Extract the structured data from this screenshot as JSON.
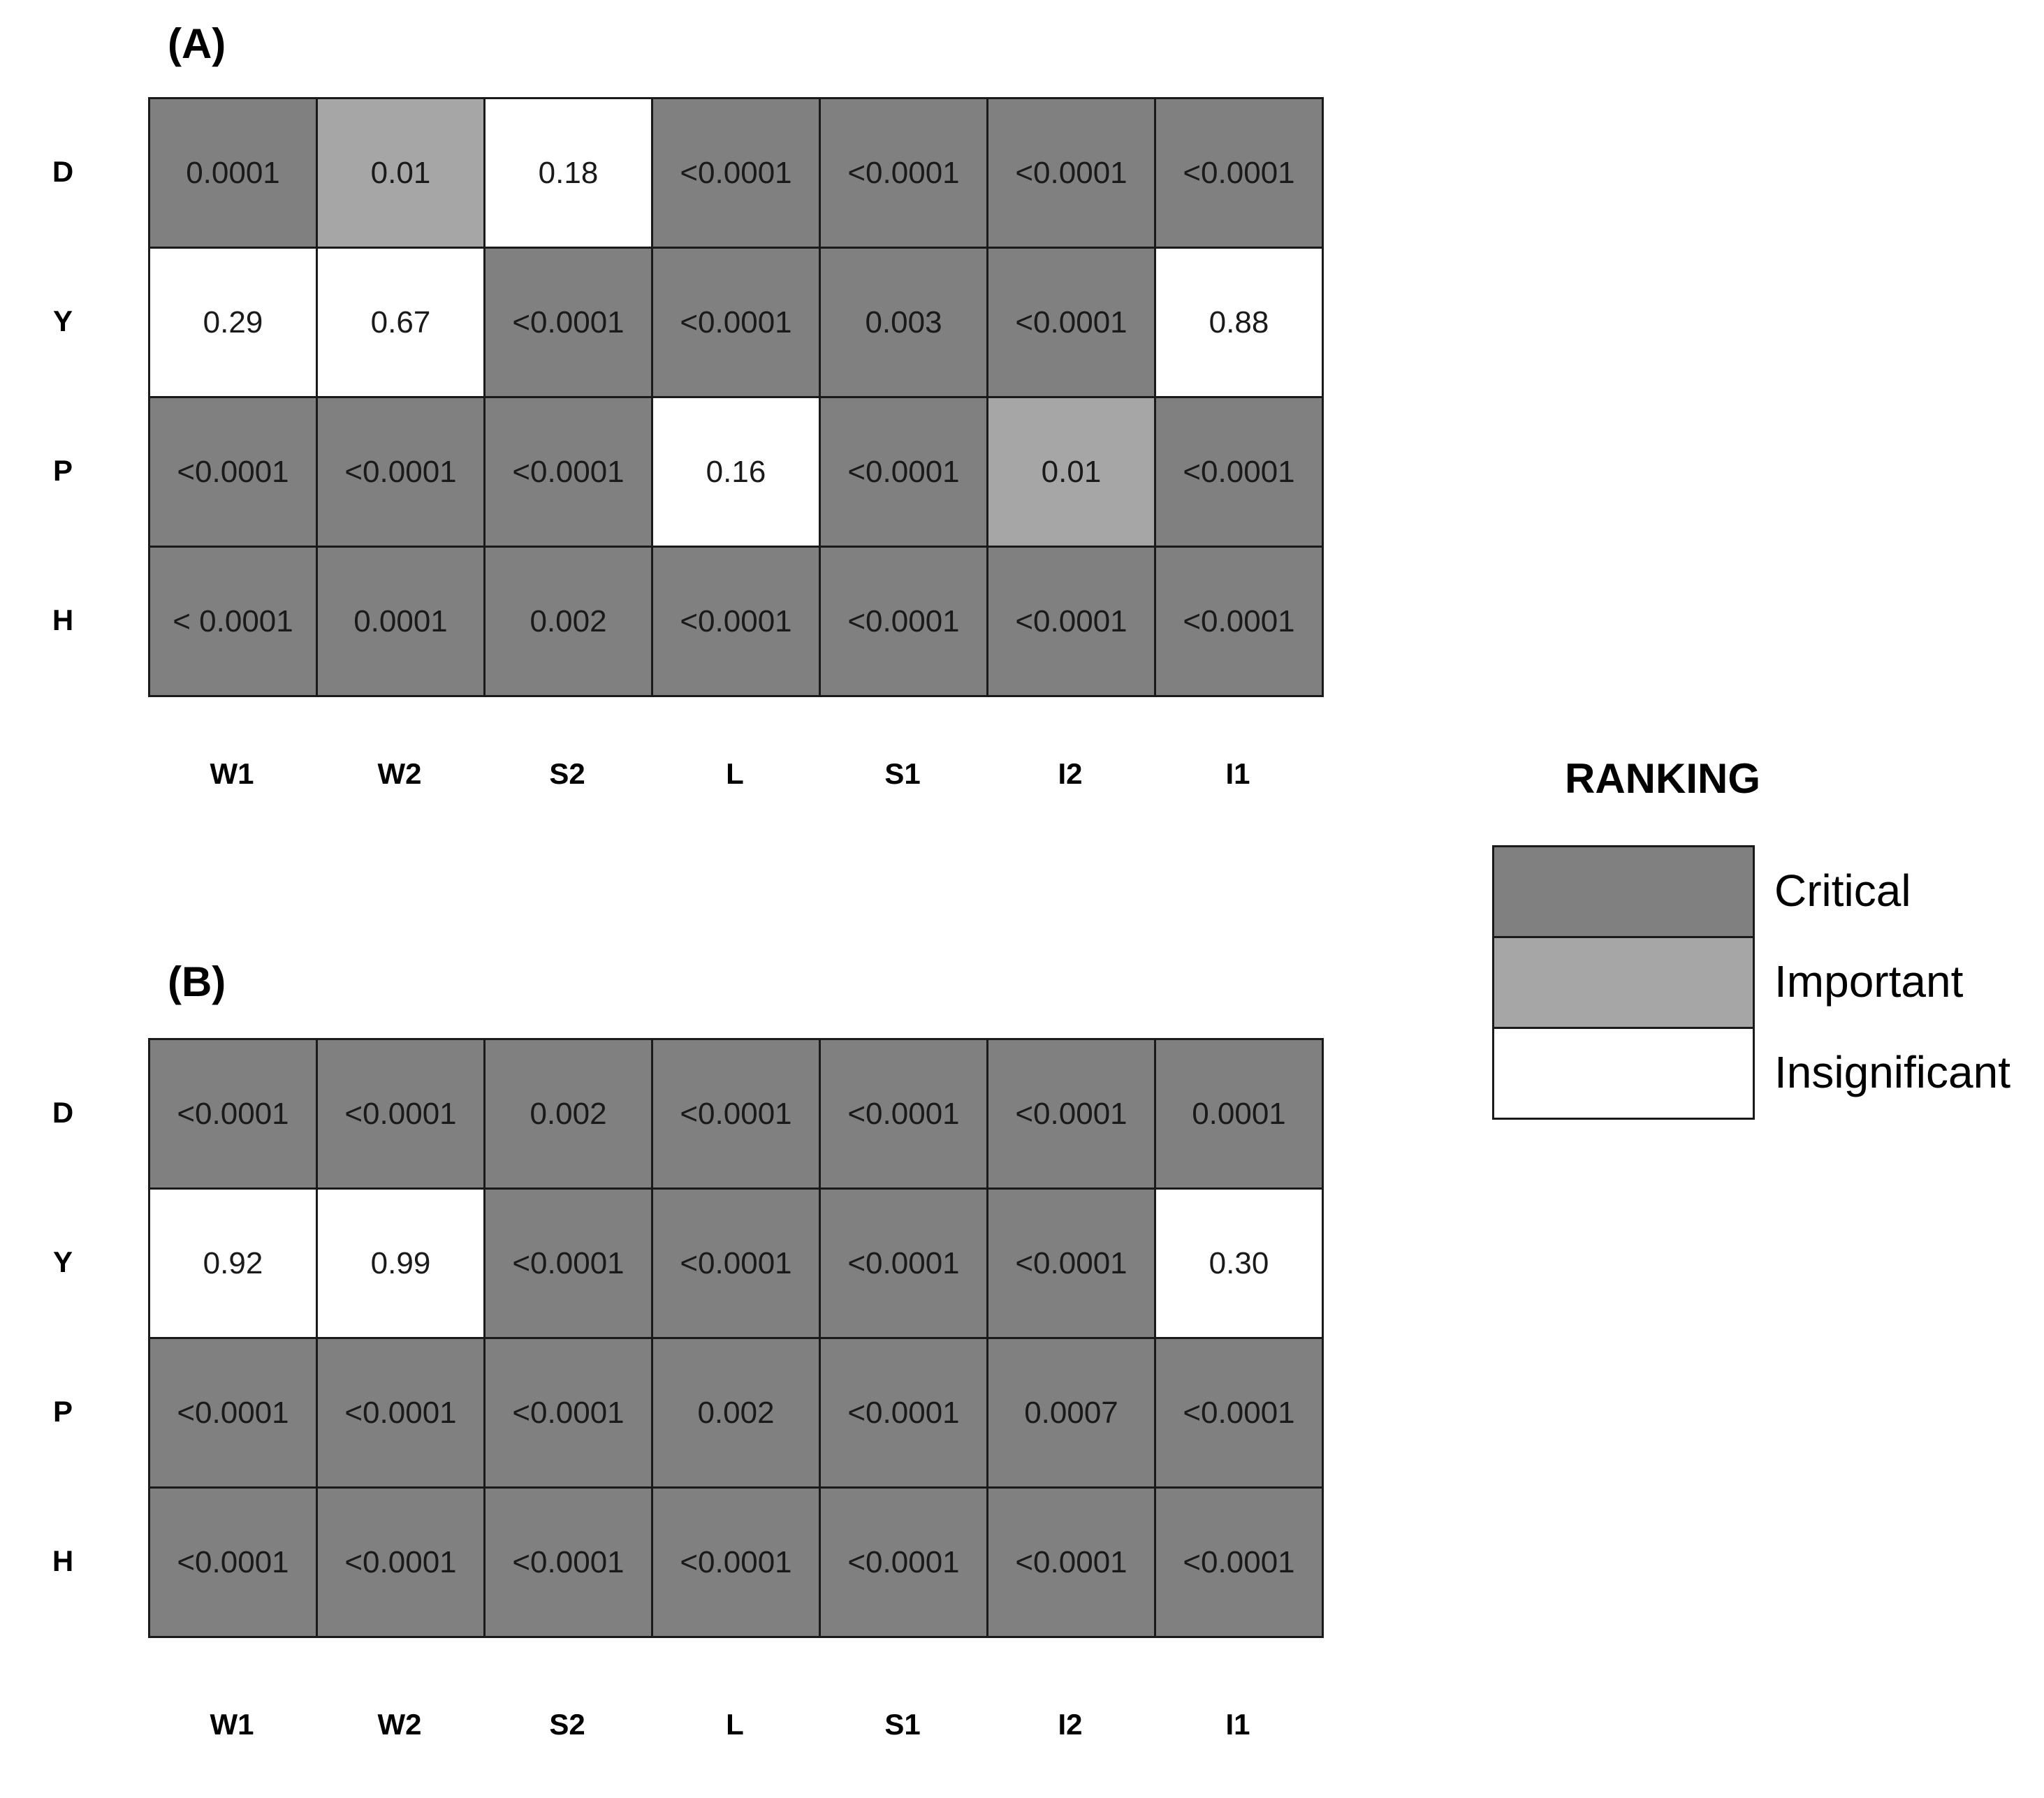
{
  "chart_data": [
    {
      "type": "heatmap",
      "title": "(A)",
      "rows": [
        "D",
        "Y",
        "P",
        "H"
      ],
      "columns": [
        "W1",
        "W2",
        "S2",
        "L",
        "S1",
        "I2",
        "I1"
      ],
      "values": [
        [
          "0.0001",
          "0.01",
          "0.18",
          "<0.0001",
          "<0.0001",
          "<0.0001",
          "<0.0001"
        ],
        [
          "0.29",
          "0.67",
          "<0.0001",
          "<0.0001",
          "0.003",
          "<0.0001",
          "0.88"
        ],
        [
          "<0.0001",
          "<0.0001",
          "<0.0001",
          "0.16",
          "<0.0001",
          "0.01",
          "<0.0001"
        ],
        [
          "< 0.0001",
          "0.0001",
          "0.002",
          "<0.0001",
          "<0.0001",
          "<0.0001",
          "<0.0001"
        ]
      ],
      "ranking": [
        [
          "Critical",
          "Important",
          "Insignificant",
          "Critical",
          "Critical",
          "Critical",
          "Critical"
        ],
        [
          "Insignificant",
          "Insignificant",
          "Critical",
          "Critical",
          "Critical",
          "Critical",
          "Insignificant"
        ],
        [
          "Critical",
          "Critical",
          "Critical",
          "Insignificant",
          "Critical",
          "Important",
          "Critical"
        ],
        [
          "Critical",
          "Critical",
          "Critical",
          "Critical",
          "Critical",
          "Critical",
          "Critical"
        ]
      ]
    },
    {
      "type": "heatmap",
      "title": "(B)",
      "rows": [
        "D",
        "Y",
        "P",
        "H"
      ],
      "columns": [
        "W1",
        "W2",
        "S2",
        "L",
        "S1",
        "I2",
        "I1"
      ],
      "values": [
        [
          "<0.0001",
          "<0.0001",
          "0.002",
          "<0.0001",
          "<0.0001",
          "<0.0001",
          "0.0001"
        ],
        [
          "0.92",
          "0.99",
          "<0.0001",
          "<0.0001",
          "<0.0001",
          "<0.0001",
          "0.30"
        ],
        [
          "<0.0001",
          "<0.0001",
          "<0.0001",
          "0.002",
          "<0.0001",
          "0.0007",
          "<0.0001"
        ],
        [
          "<0.0001",
          "<0.0001",
          "<0.0001",
          "<0.0001",
          "<0.0001",
          "<0.0001",
          "<0.0001"
        ]
      ],
      "ranking": [
        [
          "Critical",
          "Critical",
          "Critical",
          "Critical",
          "Critical",
          "Critical",
          "Critical"
        ],
        [
          "Insignificant",
          "Insignificant",
          "Critical",
          "Critical",
          "Critical",
          "Critical",
          "Insignificant"
        ],
        [
          "Critical",
          "Critical",
          "Critical",
          "Critical",
          "Critical",
          "Critical",
          "Critical"
        ],
        [
          "Critical",
          "Critical",
          "Critical",
          "Critical",
          "Critical",
          "Critical",
          "Critical"
        ]
      ]
    }
  ],
  "legend": {
    "title": "RANKING",
    "items": [
      {
        "label": "Critical",
        "color": "#808080"
      },
      {
        "label": "Important",
        "color": "#a6a6a6"
      },
      {
        "label": "Insignificant",
        "color": "#ffffff"
      }
    ]
  }
}
